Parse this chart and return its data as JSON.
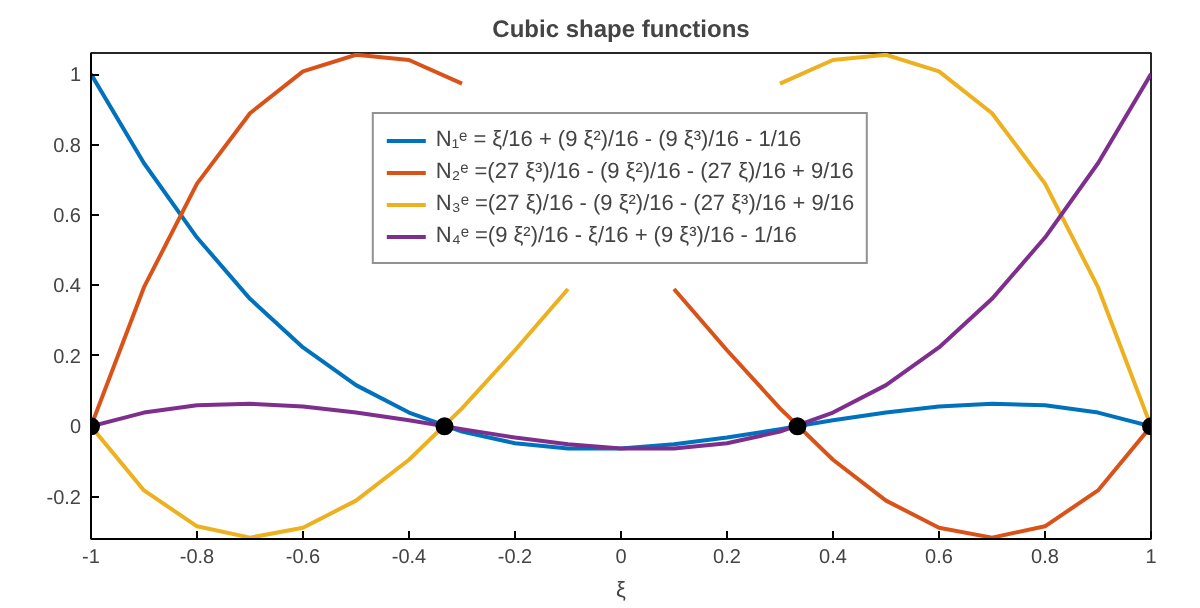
{
  "chart_data": {
    "type": "line",
    "title": "Cubic shape functions",
    "xlabel": "ξ",
    "x": [
      -1,
      -0.9,
      -0.8,
      -0.7,
      -0.6,
      -0.5,
      -0.4,
      -0.3,
      -0.2,
      -0.1,
      0,
      0.1,
      0.2,
      0.3,
      0.4,
      0.5,
      0.6,
      0.7,
      0.8,
      0.9,
      1
    ],
    "series": [
      {
        "name": "N₁ᵉ = ξ/16 + (9 ξ²)/16 - (9 ξ³)/16 - 1/16",
        "color": "#0072bd",
        "values": [
          1.0,
          0.747,
          0.536,
          0.362,
          0.224,
          0.117,
          0.039,
          -0.015,
          -0.048,
          -0.063,
          -0.063,
          -0.051,
          -0.032,
          -0.008,
          0.017,
          0.039,
          0.056,
          0.064,
          0.06,
          0.039,
          0
        ]
      },
      {
        "name": "N₂ᵉ =(27 ξ³)/16 - (9 ξ²)/16 - (27 ξ)/16 + 9/16",
        "color": "#d95319",
        "values": [
          0,
          0.395,
          0.689,
          0.889,
          1.008,
          1.055,
          1.04,
          0.973,
          null,
          null,
          null,
          0.39,
          0.216,
          0.051,
          -0.095,
          -0.211,
          -0.288,
          -0.316,
          -0.284,
          -0.182,
          0
        ]
      },
      {
        "name": "N₃ᵉ =(27 ξ)/16 - (9 ξ²)/16 - (27 ξ³)/16 + 9/16",
        "color": "#edb120",
        "values": [
          0,
          -0.182,
          -0.284,
          -0.316,
          -0.288,
          -0.211,
          -0.095,
          0.051,
          0.216,
          0.39,
          null,
          null,
          null,
          0.973,
          1.04,
          1.055,
          1.008,
          0.889,
          0.689,
          0.395,
          0
        ]
      },
      {
        "name": "N₄ᵉ =(9 ξ²)/16 - ξ/16 + (9 ξ³)/16 - 1/16",
        "color": "#7e2f8e",
        "values": [
          0,
          0.039,
          0.06,
          0.064,
          0.056,
          0.039,
          0.017,
          -0.008,
          -0.032,
          -0.051,
          -0.063,
          -0.063,
          -0.048,
          -0.015,
          0.039,
          0.117,
          0.224,
          0.362,
          0.536,
          0.747,
          1.0
        ]
      },
      {
        "type": "scatter",
        "marker": "circle",
        "color": "#000000",
        "x": [
          -1,
          -0.333,
          0.333,
          1
        ],
        "values": [
          0,
          0,
          0,
          0
        ]
      }
    ],
    "xlim": [
      -1,
      1
    ],
    "xticks": [
      -1,
      -0.8,
      -0.6,
      -0.4,
      -0.2,
      0,
      0.2,
      0.4,
      0.6,
      0.8,
      1
    ],
    "ylim": [
      -0.32,
      1.06
    ],
    "yticks": [
      -0.2,
      0,
      0.2,
      0.4,
      0.6,
      0.8,
      1
    ],
    "grid": false,
    "legend": "top",
    "line_style": "solid"
  }
}
